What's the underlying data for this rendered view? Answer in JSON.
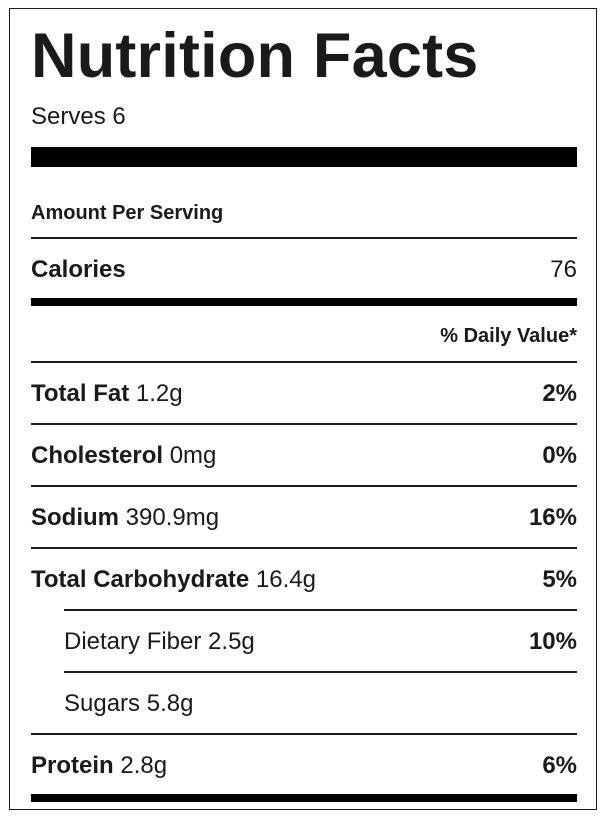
{
  "label": {
    "title": "Nutrition Facts",
    "serves": "Serves 6",
    "amount_per_serving": "Amount Per Serving",
    "calories_label": "Calories",
    "calories_value": "76",
    "daily_value_header": "% Daily Value*",
    "nutrients": [
      {
        "name": "Total Fat",
        "amount": "1.2g",
        "dv": "2%"
      },
      {
        "name": "Cholesterol",
        "amount": "0mg",
        "dv": "0%"
      },
      {
        "name": "Sodium",
        "amount": "390.9mg",
        "dv": "16%"
      },
      {
        "name": "Total Carbohydrate",
        "amount": "16.4g",
        "dv": "5%"
      },
      {
        "name": "Dietary Fiber",
        "amount": "2.5g",
        "dv": "10%"
      },
      {
        "name": "Sugars",
        "amount": "5.8g",
        "dv": ""
      },
      {
        "name": "Protein",
        "amount": "2.8g",
        "dv": "6%"
      }
    ]
  }
}
